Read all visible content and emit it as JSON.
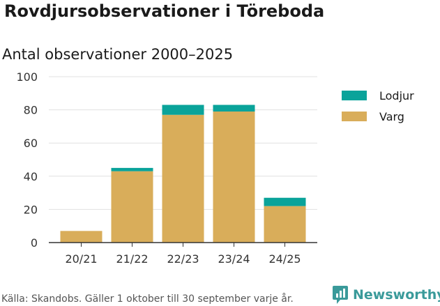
{
  "title": "Rovdjursobservationer i Töreboda",
  "subtitle": "Antal observationer 2000–2025",
  "footer": "Källa: Skandobs. Gäller 1 oktober till 30 september varje år.",
  "brand": {
    "name": "Newsworthy",
    "color": "#3a9a9a"
  },
  "colors": {
    "lodjur": "#0aa39a",
    "varg": "#d9ad5a",
    "grid": "#e1e1e1",
    "axis": "#333333"
  },
  "chart_data": {
    "type": "bar",
    "stacked": true,
    "title": "Antal observationer 2000–2025",
    "xlabel": "",
    "ylabel": "",
    "categories": [
      "20/21",
      "21/22",
      "22/23",
      "23/24",
      "24/25"
    ],
    "series": [
      {
        "name": "Varg",
        "color": "#d9ad5a",
        "values": [
          7,
          43,
          77,
          79,
          22
        ]
      },
      {
        "name": "Lodjur",
        "color": "#0aa39a",
        "values": [
          0,
          2,
          6,
          4,
          5
        ]
      }
    ],
    "ylim": [
      0,
      100
    ],
    "yticks": [
      0,
      20,
      40,
      60,
      80,
      100
    ],
    "yticks_labels": [
      "0",
      "20",
      "40",
      "60",
      "80",
      "100"
    ],
    "legend": [
      {
        "name": "Lodjur",
        "color": "#0aa39a"
      },
      {
        "name": "Varg",
        "color": "#d9ad5a"
      }
    ],
    "legend_position": "right"
  }
}
